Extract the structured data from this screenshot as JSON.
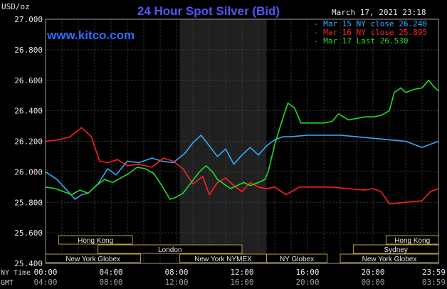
{
  "chart_data": {
    "type": "line",
    "title": "24 Hour Spot Silver (Bid)",
    "subtitle": "www.kitco.com",
    "ylabel": "USD/oz",
    "timestamp": "March 17, 2021 23:18",
    "ylim": [
      25.4,
      27.0
    ],
    "y_ticks": [
      "27.000",
      "26.800",
      "26.600",
      "26.400",
      "26.200",
      "26.000",
      "25.800",
      "25.600",
      "25.400"
    ],
    "x_row_labels": [
      "NY Time",
      "GMT"
    ],
    "x_ticks_ny": [
      "00:00",
      "04:00",
      "08:00",
      "12:00",
      "16:00",
      "20:00",
      "23:59"
    ],
    "x_ticks_gmt": [
      "04:00",
      "08:00",
      "12:00",
      "16:00",
      "20:00",
      "00:00",
      "03:59"
    ],
    "grid": true,
    "legend_position": "top-right",
    "series": [
      {
        "name": "Mar 15 NY close 26.240",
        "color": "#33aaff",
        "x": [
          0,
          0.7,
          1.3,
          1.8,
          2.2,
          2.6,
          3.2,
          3.8,
          4.3,
          5.0,
          5.7,
          6.5,
          7.1,
          7.8,
          8.5,
          9.0,
          9.5,
          10.0,
          10.5,
          11.0,
          11.5,
          12.0,
          12.5,
          13.0,
          13.5,
          14.0,
          14.5,
          15.0,
          16.0,
          17.0,
          18.0,
          19.0,
          20.0,
          21.0,
          22.0,
          23.0,
          24.0
        ],
        "y": [
          26.0,
          25.95,
          25.88,
          25.82,
          25.85,
          25.86,
          25.92,
          26.02,
          25.98,
          26.07,
          26.06,
          26.09,
          26.07,
          26.06,
          26.12,
          26.19,
          26.24,
          26.17,
          26.1,
          26.15,
          26.05,
          26.11,
          26.16,
          26.11,
          26.17,
          26.21,
          26.23,
          26.23,
          26.24,
          26.24,
          26.24,
          26.23,
          26.22,
          26.21,
          26.2,
          26.16,
          26.2
        ]
      },
      {
        "name": "Mar 16 NY close 25.895",
        "color": "#ff2020",
        "x": [
          0,
          0.8,
          1.5,
          2.2,
          2.8,
          3.3,
          3.8,
          4.4,
          5.0,
          5.7,
          6.5,
          7.2,
          7.8,
          8.4,
          9.0,
          9.6,
          10.0,
          10.5,
          11.0,
          11.5,
          12.0,
          12.5,
          13.0,
          13.5,
          14.0,
          14.7,
          15.5,
          16.5,
          17.5,
          18.5,
          19.5,
          20.0,
          20.5,
          21.0,
          22.0,
          23.0,
          23.5,
          24.0
        ],
        "y": [
          26.2,
          26.21,
          26.23,
          26.29,
          26.23,
          26.07,
          26.06,
          26.08,
          26.04,
          26.05,
          26.03,
          26.09,
          26.07,
          26.02,
          25.92,
          25.97,
          25.85,
          25.93,
          25.96,
          25.91,
          25.87,
          25.93,
          25.9,
          25.89,
          25.9,
          25.85,
          25.9,
          25.9,
          25.9,
          25.89,
          25.88,
          25.89,
          25.87,
          25.79,
          25.8,
          25.81,
          25.87,
          25.89
        ]
      },
      {
        "name": "Mar 17 Last 26.530",
        "color": "#22dd22",
        "x": [
          0,
          0.6,
          1.1,
          1.6,
          2.1,
          2.6,
          3.1,
          3.6,
          4.1,
          4.6,
          5.1,
          5.6,
          6.1,
          6.6,
          7.1,
          7.6,
          7.9,
          8.4,
          8.9,
          9.4,
          9.8,
          10.2,
          10.5,
          10.9,
          11.3,
          11.7,
          12.1,
          12.5,
          13.0,
          13.4,
          13.6,
          14.0,
          14.4,
          14.8,
          15.2,
          15.6,
          16.0,
          16.5,
          17.0,
          17.5,
          17.9,
          18.2,
          18.5,
          19.0,
          19.5,
          20.0,
          20.5,
          21.0,
          21.3,
          21.7,
          22.0,
          22.5,
          23.0,
          23.4,
          23.7,
          24.0
        ],
        "y": [
          25.9,
          25.89,
          25.87,
          25.85,
          25.88,
          25.86,
          25.91,
          25.95,
          25.93,
          25.96,
          25.99,
          26.03,
          26.02,
          25.99,
          25.91,
          25.82,
          25.83,
          25.86,
          25.93,
          26.0,
          26.04,
          26.0,
          25.95,
          25.92,
          25.89,
          25.91,
          25.93,
          25.91,
          25.93,
          25.95,
          26.0,
          26.18,
          26.32,
          26.45,
          26.42,
          26.32,
          26.32,
          26.32,
          26.32,
          26.33,
          26.38,
          26.36,
          26.34,
          26.35,
          26.36,
          26.36,
          26.37,
          26.4,
          26.52,
          26.55,
          26.52,
          26.54,
          26.55,
          26.6,
          26.56,
          26.53
        ]
      }
    ],
    "market_sessions": [
      {
        "name": "Hong Kong",
        "start": 0.8,
        "end": 5.3,
        "row": 0
      },
      {
        "name": "London",
        "start": 3.2,
        "end": 12.0,
        "row": 1
      },
      {
        "name": "New York Globex",
        "start": 0.0,
        "end": 5.8,
        "row": 2
      },
      {
        "name": "New York NYMEX",
        "start": 8.2,
        "end": 13.5,
        "row": 2
      },
      {
        "name": "NY Globex",
        "start": 13.5,
        "end": 17.2,
        "row": 2
      },
      {
        "name": "Hong Kong",
        "start": 20.8,
        "end": 24.0,
        "row": 0
      },
      {
        "name": "Sydney",
        "start": 18.8,
        "end": 24.0,
        "row": 1
      },
      {
        "name": "New York Globex",
        "start": 18.0,
        "end": 24.0,
        "row": 2
      }
    ],
    "highlight_band": {
      "start": 8.2,
      "end": 13.5
    }
  }
}
